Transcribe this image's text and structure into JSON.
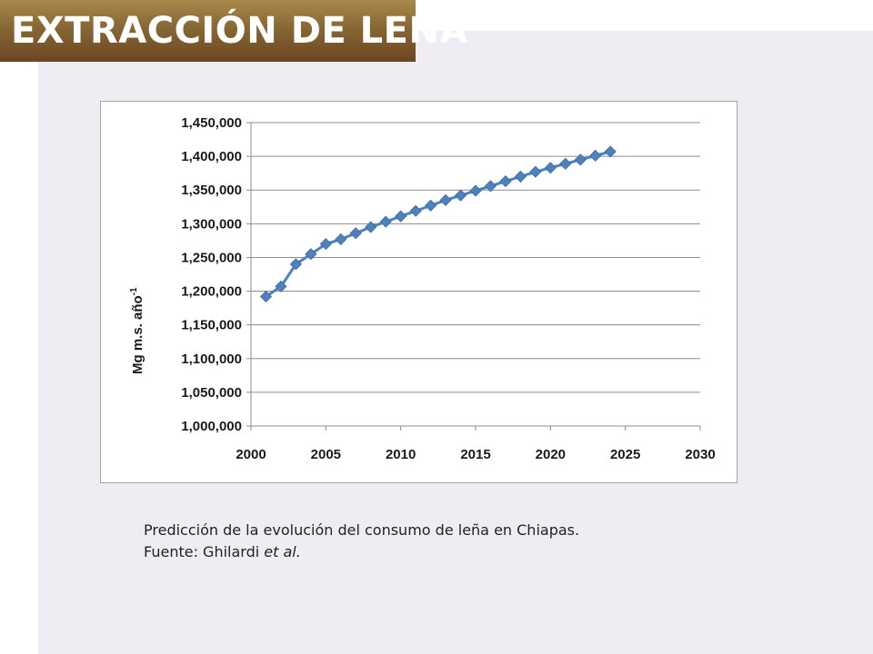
{
  "slide": {
    "title": "EXTRACCIÓN DE LEÑA",
    "caption_line1": "Predicción de la evolución del consumo de leña en Chiapas.",
    "caption_source_prefix": "Fuente: Ghilardi ",
    "caption_source_italic": "et al."
  },
  "colors": {
    "banner": "#8a6a36",
    "series": "#4f81bd",
    "grid": "#8c8c8c"
  },
  "chart_data": {
    "type": "line",
    "title": "",
    "xlabel": "",
    "ylabel": "Mg m.s. año",
    "ylabel_superscript": "-1",
    "xlim": [
      2000,
      2030
    ],
    "ylim": [
      1000000,
      1450000
    ],
    "x_ticks": [
      2000,
      2005,
      2010,
      2015,
      2020,
      2025,
      2030
    ],
    "y_ticks": [
      1000000,
      1050000,
      1100000,
      1150000,
      1200000,
      1250000,
      1300000,
      1350000,
      1400000,
      1450000
    ],
    "y_tick_labels": [
      "1,000,000",
      "1,050,000",
      "1,100,000",
      "1,150,000",
      "1,200,000",
      "1,250,000",
      "1,300,000",
      "1,350,000",
      "1,400,000",
      "1,450,000"
    ],
    "x_tick_labels": [
      "2000",
      "2005",
      "2010",
      "2015",
      "2020",
      "2025",
      "2030"
    ],
    "grid": "horizontal",
    "marker": "diamond",
    "series": [
      {
        "x": [
          2001,
          2002,
          2003,
          2004,
          2005,
          2006,
          2007,
          2008,
          2009,
          2010,
          2011,
          2012,
          2013,
          2014,
          2015,
          2016,
          2017,
          2018,
          2019,
          2020,
          2021,
          2022,
          2023,
          2024
        ],
        "values": [
          1192000,
          1207000,
          1240000,
          1255000,
          1270000,
          1277000,
          1286000,
          1295000,
          1303000,
          1311000,
          1319000,
          1327000,
          1335000,
          1342000,
          1349000,
          1356000,
          1363000,
          1370000,
          1377000,
          1383000,
          1389000,
          1395000,
          1401000,
          1407000
        ]
      }
    ]
  }
}
